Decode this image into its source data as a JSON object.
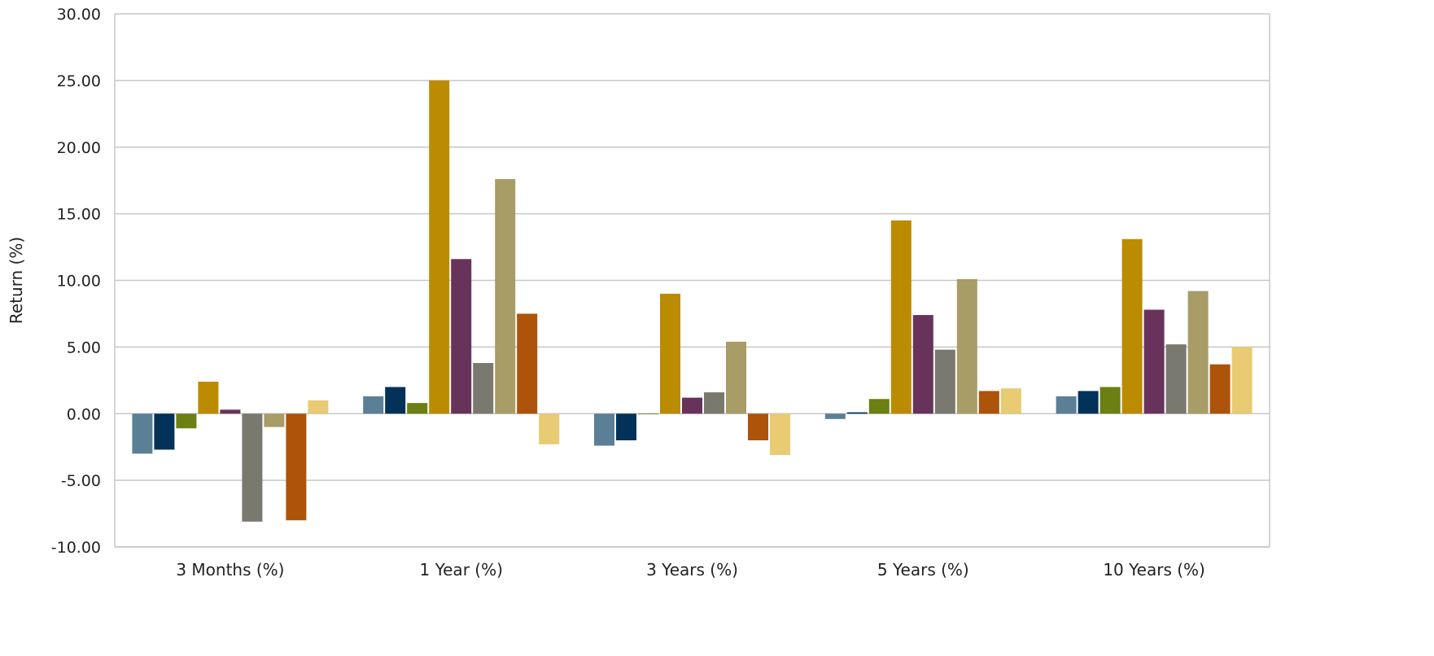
{
  "chart_data": {
    "type": "bar",
    "title": "",
    "xlabel": "",
    "ylabel": "Return (%)",
    "ylim": [
      -10,
      30
    ],
    "yticks": [
      30,
      25,
      20,
      15,
      10,
      5,
      0,
      -5,
      -10
    ],
    "ytick_labels": [
      "30.00",
      "25.00",
      "20.00",
      "15.00",
      "10.00",
      "5.00",
      "0.00",
      "-5.00",
      "-10.00"
    ],
    "grid": true,
    "legend": "none",
    "categories": [
      "3 Months (%)",
      "1 Year (%)",
      "3 Years (%)",
      "5 Years (%)",
      "10 Years (%)"
    ],
    "series": [
      {
        "color": "#5b7f95",
        "values": [
          -3.0,
          1.3,
          -2.4,
          -0.4,
          1.3
        ]
      },
      {
        "color": "#02325a",
        "values": [
          -2.7,
          2.0,
          -2.0,
          0.1,
          1.7
        ]
      },
      {
        "color": "#6b7f12",
        "values": [
          -1.1,
          0.8,
          0.0,
          1.1,
          2.0
        ]
      },
      {
        "color": "#bb8b02",
        "values": [
          2.4,
          25.0,
          9.0,
          14.5,
          13.1
        ]
      },
      {
        "color": "#68335b",
        "values": [
          0.3,
          11.6,
          1.2,
          7.4,
          7.8
        ]
      },
      {
        "color": "#797970",
        "values": [
          -8.1,
          3.8,
          1.6,
          4.8,
          5.2
        ]
      },
      {
        "color": "#a89c67",
        "values": [
          -1.0,
          17.6,
          5.4,
          10.1,
          9.2
        ]
      },
      {
        "color": "#ad530a",
        "values": [
          -8.0,
          7.5,
          -2.0,
          1.7,
          3.7
        ]
      },
      {
        "color": "#e8cb72",
        "values": [
          1.0,
          -2.3,
          -3.1,
          1.9,
          5.0
        ]
      }
    ]
  }
}
